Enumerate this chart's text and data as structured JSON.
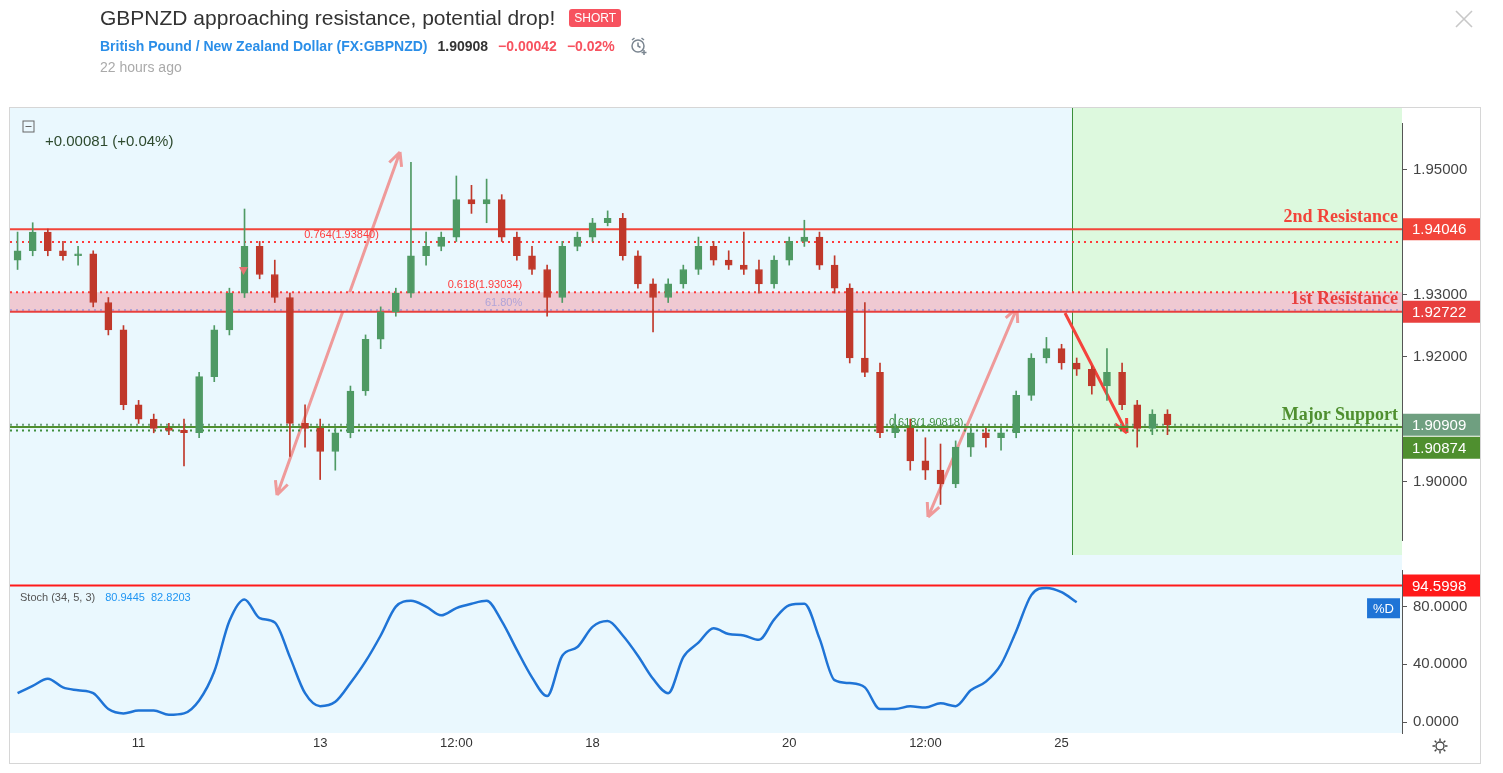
{
  "chart_data": [
    {
      "type": "candlestick",
      "title": "GBPNZD approaching resistance, potential drop!",
      "subtitle": "British Pound / New Zealand Dollar (FX:GBPNZD)",
      "categories": [
        null,
        null,
        null,
        null,
        null,
        null,
        null,
        null,
        null,
        null,
        null,
        null,
        null,
        null,
        null,
        null,
        null,
        null,
        null,
        null,
        null,
        null,
        null,
        null,
        null,
        null,
        null,
        null,
        null,
        null,
        null,
        null,
        null,
        null,
        null,
        null,
        null,
        null,
        null,
        null,
        null,
        null,
        null,
        null,
        null,
        null,
        null,
        null,
        null,
        null,
        null,
        null,
        null,
        null,
        null,
        null,
        null,
        null,
        null,
        null,
        null,
        null,
        null,
        null,
        null,
        null,
        null,
        null,
        null,
        null,
        null,
        null,
        null,
        null,
        null,
        null,
        null,
        null,
        null,
        null,
        null,
        null,
        null,
        null,
        null,
        null,
        null,
        null,
        null,
        null,
        null,
        null
      ],
      "ohlc": [
        [
          1.9355,
          1.94,
          1.934,
          1.937
        ],
        [
          1.937,
          1.9415,
          1.9362,
          1.94
        ],
        [
          1.94,
          1.9405,
          1.9362,
          1.937
        ],
        [
          1.937,
          1.9385,
          1.9355,
          1.9362
        ],
        [
          1.9362,
          1.9377,
          1.9347,
          1.9365
        ],
        [
          1.9365,
          1.937,
          1.928,
          1.9287
        ],
        [
          1.9287,
          1.9295,
          1.9235,
          1.9243
        ],
        [
          1.9243,
          1.925,
          1.9115,
          1.9123
        ],
        [
          1.9123,
          1.913,
          1.9093,
          1.91
        ],
        [
          1.91,
          1.9108,
          1.9078,
          1.9085
        ],
        [
          1.9085,
          1.9093,
          1.9075,
          1.9082
        ],
        [
          1.9082,
          1.91,
          1.9025,
          1.9078
        ],
        [
          1.9078,
          1.9175,
          1.907,
          1.9168
        ],
        [
          1.9168,
          1.925,
          1.916,
          1.9243
        ],
        [
          1.9243,
          1.931,
          1.9235,
          1.9302
        ],
        [
          1.9302,
          1.9437,
          1.9295,
          1.9377
        ],
        [
          1.9377,
          1.9385,
          1.9325,
          1.9332
        ],
        [
          1.9332,
          1.9355,
          1.9287,
          1.9295
        ],
        [
          1.9295,
          1.9302,
          1.904,
          1.9093
        ],
        [
          1.9093,
          1.9123,
          1.9055,
          1.9085
        ],
        [
          1.9085,
          1.91,
          1.9003,
          1.9048
        ],
        [
          1.9048,
          1.9085,
          1.9018,
          1.9078
        ],
        [
          1.9078,
          1.9153,
          1.907,
          1.9145
        ],
        [
          1.9145,
          1.9235,
          1.9138,
          1.9228
        ],
        [
          1.9228,
          1.928,
          1.9213,
          1.9272
        ],
        [
          1.9272,
          1.931,
          1.9265,
          1.9302
        ],
        [
          1.9302,
          1.9512,
          1.9295,
          1.9362
        ],
        [
          1.9362,
          1.94,
          1.9347,
          1.9377
        ],
        [
          1.9377,
          1.94,
          1.937,
          1.9392
        ],
        [
          1.9392,
          1.949,
          1.9385,
          1.9452
        ],
        [
          1.9452,
          1.9475,
          1.943,
          1.9445
        ],
        [
          1.9445,
          1.9485,
          1.9415,
          1.9452
        ],
        [
          1.9452,
          1.946,
          1.9385,
          1.9392
        ],
        [
          1.9392,
          1.94,
          1.9355,
          1.9362
        ],
        [
          1.9362,
          1.9377,
          1.9332,
          1.934
        ],
        [
          1.934,
          1.9347,
          1.9265,
          1.9295
        ],
        [
          1.9295,
          1.9385,
          1.9287,
          1.9377
        ],
        [
          1.9377,
          1.94,
          1.937,
          1.9392
        ],
        [
          1.9392,
          1.9422,
          1.9385,
          1.9415
        ],
        [
          1.9415,
          1.9434,
          1.941,
          1.9422
        ],
        [
          1.9422,
          1.943,
          1.9355,
          1.9362
        ],
        [
          1.9362,
          1.937,
          1.931,
          1.9317
        ],
        [
          1.9317,
          1.9325,
          1.924,
          1.9295
        ],
        [
          1.9295,
          1.9325,
          1.9287,
          1.9317
        ],
        [
          1.9317,
          1.9347,
          1.931,
          1.934
        ],
        [
          1.934,
          1.9392,
          1.9332,
          1.9377
        ],
        [
          1.9377,
          1.9385,
          1.9347,
          1.9355
        ],
        [
          1.9355,
          1.937,
          1.934,
          1.9347
        ],
        [
          1.9347,
          1.94,
          1.9332,
          1.934
        ],
        [
          1.934,
          1.9355,
          1.9302,
          1.9317
        ],
        [
          1.9317,
          1.9362,
          1.931,
          1.9355
        ],
        [
          1.9355,
          1.9392,
          1.9347,
          1.9385
        ],
        [
          1.9385,
          1.9419,
          1.9377,
          1.9392
        ],
        [
          1.9392,
          1.94,
          1.934,
          1.9347
        ],
        [
          1.9347,
          1.9362,
          1.9302,
          1.931
        ],
        [
          1.931,
          1.9317,
          1.919,
          1.9198
        ],
        [
          1.9198,
          1.9287,
          1.9168,
          1.9175
        ],
        [
          1.9175,
          1.919,
          1.907,
          1.9078
        ],
        [
          1.9078,
          1.9108,
          1.907,
          1.9085
        ],
        [
          1.9085,
          1.91,
          1.9018,
          1.9033
        ],
        [
          1.9033,
          1.907,
          1.9003,
          1.9018
        ],
        [
          1.9018,
          1.906,
          1.8963,
          1.8996
        ],
        [
          1.8996,
          1.9065,
          1.899,
          1.9055
        ],
        [
          1.9055,
          1.9085,
          1.904,
          1.9078
        ],
        [
          1.9078,
          1.9085,
          1.9055,
          1.907
        ],
        [
          1.907,
          1.9085,
          1.905,
          1.9078
        ],
        [
          1.9078,
          1.9145,
          1.907,
          1.9138
        ],
        [
          1.9138,
          1.9205,
          1.913,
          1.9198
        ],
        [
          1.9198,
          1.9231,
          1.919,
          1.9213
        ],
        [
          1.9213,
          1.922,
          1.918,
          1.919
        ],
        [
          1.919,
          1.9198,
          1.917,
          1.918
        ],
        [
          1.918,
          1.9185,
          1.914,
          1.9153
        ],
        [
          1.9153,
          1.9213,
          1.913,
          1.9175
        ],
        [
          1.9175,
          1.919,
          1.9115,
          1.9123
        ],
        [
          1.9123,
          1.913,
          1.9055,
          1.9085
        ],
        [
          1.9085,
          1.9115,
          1.9075,
          1.9108
        ],
        [
          1.9108,
          1.9115,
          1.9075,
          1.9091
        ],
        null,
        null,
        null,
        null,
        null,
        null,
        null,
        null,
        null,
        null,
        null,
        null,
        null,
        null,
        null
      ],
      "colors": [
        "#4f9a64",
        "#4f9a64",
        "#c0392b",
        "#c0392b",
        "#4f9a64",
        "#c0392b",
        "#c0392b",
        "#c0392b",
        "#c0392b",
        "#c0392b",
        "#c0392b",
        "#c0392b",
        "#4f9a64",
        "#4f9a64",
        "#4f9a64",
        "#4f9a64",
        "#c0392b",
        "#c0392b",
        "#c0392b",
        "#c0392b",
        "#c0392b",
        "#4f9a64",
        "#4f9a64",
        "#4f9a64",
        "#4f9a64",
        "#4f9a64",
        "#4f9a64",
        "#4f9a64",
        "#4f9a64",
        "#4f9a64",
        "#c0392b",
        "#4f9a64",
        "#c0392b",
        "#c0392b",
        "#c0392b",
        "#c0392b",
        "#4f9a64",
        "#4f9a64",
        "#4f9a64",
        "#4f9a64",
        "#c0392b",
        "#c0392b",
        "#c0392b",
        "#4f9a64",
        "#4f9a64",
        "#4f9a64",
        "#c0392b",
        "#c0392b",
        "#c0392b",
        "#c0392b",
        "#4f9a64",
        "#4f9a64",
        "#4f9a64",
        "#c0392b",
        "#c0392b",
        "#c0392b",
        "#c0392b",
        "#c0392b",
        "#4f9a64",
        "#c0392b",
        "#c0392b",
        "#c0392b",
        "#4f9a64",
        "#4f9a64",
        "#c0392b",
        "#4f9a64",
        "#4f9a64",
        "#4f9a64",
        "#4f9a64",
        "#c0392b",
        "#c0392b",
        "#c0392b",
        "#4f9a64",
        "#c0392b",
        "#c0392b",
        "#4f9a64",
        "#c0392b",
        null,
        null,
        null,
        null,
        null,
        null,
        null,
        null,
        null,
        null,
        null,
        null,
        null,
        null,
        null
      ],
      "ylim": [
        1.8906,
        1.9575
      ],
      "yticks": [
        {
          "value": 1.9,
          "label": "1.90000"
        },
        {
          "value": 1.92,
          "label": "1.92000"
        },
        {
          "value": 1.93,
          "label": "1.93000"
        },
        {
          "value": 1.95,
          "label": "1.95000"
        }
      ],
      "tick_labels": "y",
      "bands": [
        {
          "axis": "y",
          "from": 1.92722,
          "to": 1.93034,
          "color": "#efc9d2"
        }
      ],
      "ref_lines": [
        {
          "axis": "y",
          "value": 1.94046,
          "label": "1.94046",
          "color": "#f2453a",
          "line_style": "solid"
        },
        {
          "axis": "y",
          "value": 1.9384,
          "color": "#ff3b3b",
          "line_style": "dotted"
        },
        {
          "axis": "y",
          "value": 1.93034,
          "color": "#ff3b3b",
          "line_style": "dotted"
        },
        {
          "axis": "y",
          "value": 1.9275,
          "color": "#b0a4d8",
          "line_style": "dotted"
        },
        {
          "axis": "y",
          "value": 1.92722,
          "label": "1.92722",
          "color": "#e8403e",
          "line_style": "solid"
        },
        {
          "axis": "y",
          "value": 1.90909,
          "label": "1.90909",
          "color": "#6f9f80",
          "line_style": "dotted"
        },
        {
          "axis": "y",
          "value": 1.90874,
          "label": "1.90874",
          "color": "#4f8f2f",
          "line_style": "solid"
        },
        {
          "axis": "y",
          "value": 1.90818,
          "color": "#3f8f3f",
          "line_style": "dotted"
        }
      ],
      "annotations": [
        "SHORT",
        "1.90908",
        "−0.00042",
        "−0.02%",
        "22 hours ago",
        "+0.00081 (+0.04%)",
        {
          "text": "2nd Resistance",
          "y": 1.94046
        },
        {
          "text": "0.764(1.93840)",
          "y": 1.9384
        },
        {
          "text": "0.618(1.93034)",
          "y": 1.93034
        },
        {
          "text": "61.80%",
          "y": 1.9275
        },
        {
          "text": "1st Resistance",
          "y": 1.92722
        },
        {
          "text": "Major Support",
          "y": 1.90874
        },
        {
          "text": "0.618(1.90818)",
          "y": 1.90818
        }
      ]
    },
    {
      "type": "line",
      "title": "Stoch (34, 5, 3)",
      "categories": [
        null,
        null,
        null,
        null,
        null,
        null,
        null,
        null,
        "11",
        null,
        null,
        null,
        null,
        null,
        null,
        null,
        null,
        null,
        null,
        null,
        "13",
        null,
        null,
        null,
        null,
        null,
        null,
        null,
        null,
        "12:00",
        null,
        null,
        null,
        null,
        null,
        null,
        null,
        null,
        "18",
        null,
        null,
        null,
        null,
        null,
        null,
        null,
        null,
        null,
        null,
        null,
        null,
        "20",
        null,
        null,
        null,
        null,
        null,
        null,
        null,
        null,
        "12:00",
        null,
        null,
        null,
        null,
        null,
        null,
        null,
        null,
        "25",
        null,
        null,
        null,
        null,
        null,
        null,
        null,
        null,
        null,
        null,
        null,
        null,
        null,
        null,
        null,
        null,
        null,
        null,
        null,
        null,
        null,
        null
      ],
      "series": [
        {
          "name": "%D",
          "color": "#1f74d6",
          "values": [
            20,
            25,
            30,
            24,
            22,
            20,
            9,
            6,
            8,
            8,
            5,
            6,
            15,
            35,
            70,
            85,
            72,
            69,
            45,
            20,
            11,
            14,
            27,
            42,
            60,
            80,
            84,
            80,
            74,
            79,
            82,
            84,
            70,
            50,
            31,
            18,
            46,
            52,
            66,
            70,
            60,
            46,
            30,
            20,
            45,
            55,
            65,
            61,
            60,
            57,
            71,
            81,
            82,
            58,
            29,
            27,
            24,
            9,
            9,
            11,
            10,
            13,
            11,
            22,
            28,
            40,
            63,
            88,
            93,
            90,
            83,
            null,
            null,
            null,
            null,
            null,
            null,
            null,
            null,
            null,
            null,
            null,
            null,
            null,
            null,
            null,
            null,
            null,
            null,
            null,
            null,
            null
          ]
        }
      ],
      "ylim": [
        -7.6,
        105.4
      ],
      "yticks": [
        {
          "value": 0,
          "label": "0.0000"
        },
        {
          "value": 40,
          "label": "40.0000"
        },
        {
          "value": 80,
          "label": "80.0000"
        }
      ],
      "ref_lines": [
        {
          "axis": "y",
          "value": 94.5998,
          "label": "94.5998",
          "color": "#ff1a1a",
          "line_style": "solid"
        }
      ],
      "annotations": [
        "80.9445",
        "82.8203"
      ]
    }
  ]
}
